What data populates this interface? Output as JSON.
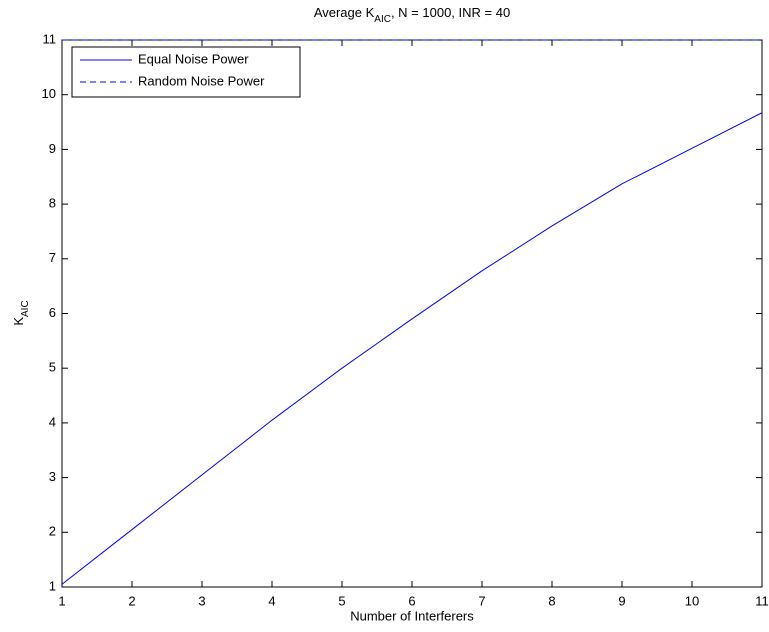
{
  "chart_data": {
    "type": "line",
    "title": [
      "Average K",
      "AIC",
      ", N = 1000, INR = 40"
    ],
    "xlabel": "Number of Interferers",
    "ylabel": [
      "K",
      "AIC"
    ],
    "x": [
      1,
      2,
      3,
      4,
      5,
      6,
      7,
      8,
      9,
      10,
      11
    ],
    "series": [
      {
        "name": "Equal Noise Power",
        "color": "#0000ff",
        "dash": "solid",
        "values": [
          1.05,
          2.05,
          3.05,
          4.05,
          5.0,
          5.9,
          6.78,
          7.6,
          8.37,
          9.02,
          9.67
        ]
      },
      {
        "name": "Random Noise Power",
        "color": "#0000ff",
        "dash": "dashed",
        "values": [
          11,
          11,
          11,
          11,
          11,
          11,
          11,
          11,
          11,
          11,
          11
        ]
      }
    ],
    "xlim": [
      1,
      11
    ],
    "xticks": [
      1,
      2,
      3,
      4,
      5,
      6,
      7,
      8,
      9,
      10,
      11
    ],
    "ylim": [
      1,
      11
    ],
    "yticks": [
      1,
      2,
      3,
      4,
      5,
      6,
      7,
      8,
      9,
      10,
      11
    ],
    "grid": false,
    "legend": "upper left"
  }
}
